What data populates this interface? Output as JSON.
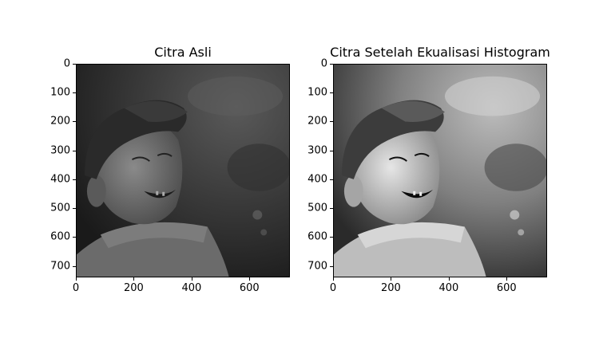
{
  "panels": [
    {
      "title": "Citra Asli",
      "image": "grayscale portrait of a smiling elderly man wearing a cap",
      "tone": "original"
    },
    {
      "title": "Citra Setelah Ekualisasi Histogram",
      "image": "grayscale portrait of a smiling elderly man wearing a cap, higher contrast",
      "tone": "equalized"
    }
  ],
  "axes": {
    "x_ticks": [
      "0",
      "200",
      "400",
      "600"
    ],
    "y_ticks": [
      "0",
      "100",
      "200",
      "300",
      "400",
      "500",
      "600",
      "700"
    ]
  }
}
